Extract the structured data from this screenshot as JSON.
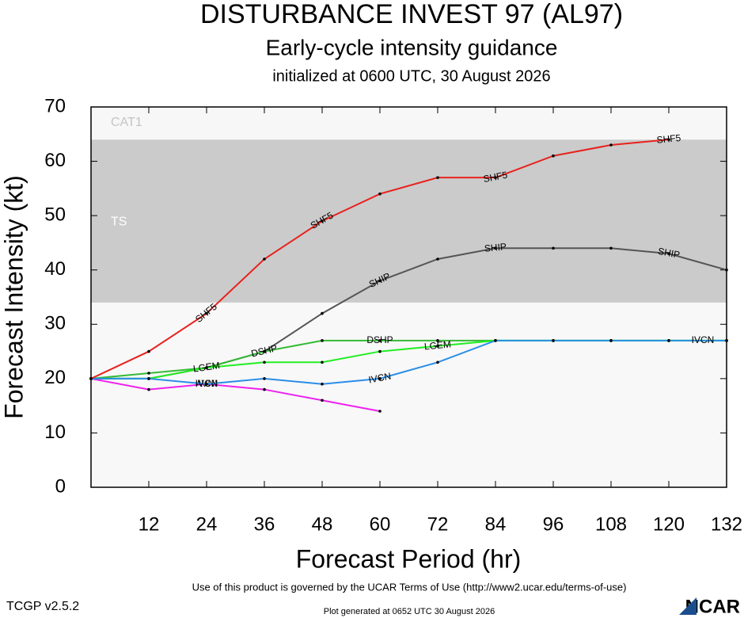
{
  "chart_data": {
    "type": "line",
    "title": "DISTURBANCE INVEST 97 (AL97)",
    "subtitle": "Early-cycle intensity guidance",
    "initialized": "initialized at 0600 UTC, 30 August 2026",
    "x_label": "Forecast Period (hr)",
    "y_label": "Forecast Intensity (kt)",
    "footer": "Use of this product is governed by the UCAR Terms of Use (http://www2.ucar.edu/terms-of-use)",
    "version": "TCGP v2.5.2",
    "generated": "Plot generated at 0652 UTC   30 August 2026",
    "logo": "NCAR",
    "xlim": [
      0,
      132
    ],
    "xticks": [
      12,
      24,
      36,
      48,
      60,
      72,
      84,
      96,
      108,
      120,
      132
    ],
    "ylim": [
      0,
      70
    ],
    "yticks": [
      0,
      10,
      20,
      30,
      40,
      50,
      60,
      70
    ],
    "bands": [
      {
        "label": "TS",
        "from": 34,
        "to": 64,
        "color": "#cbcbcb"
      },
      {
        "label": "CAT1",
        "from": 64,
        "to": 70,
        "color": "#f7f7f7"
      }
    ],
    "x": [
      0,
      12,
      24,
      36,
      48,
      60,
      72,
      84,
      96,
      108,
      120,
      132
    ],
    "series": [
      {
        "name": "SHIP",
        "color": "#555555",
        "values": [
          20,
          20,
          22,
          25,
          32,
          38,
          42,
          44,
          44,
          44,
          43,
          40
        ]
      },
      {
        "name": "DSHP",
        "color": "#33bb33",
        "values": [
          20,
          21,
          22,
          25,
          27,
          27,
          27,
          27,
          27,
          27,
          27,
          27
        ]
      },
      {
        "name": "LGEM",
        "color": "#22ee22",
        "values": [
          20,
          20,
          22,
          23,
          23,
          25,
          26,
          27,
          27,
          27,
          27,
          27
        ]
      },
      {
        "name": "AVNI",
        "color": "#ee22ee",
        "values": [
          20,
          18,
          19,
          18,
          16,
          14,
          null,
          null,
          null,
          null,
          null,
          null
        ]
      },
      {
        "name": "IVCN",
        "color": "#2a8ee8",
        "values": [
          20,
          20,
          19,
          20,
          19,
          20,
          23,
          27,
          27,
          27,
          27,
          27
        ]
      },
      {
        "name": "SHF5",
        "color": "#e8221e",
        "values": [
          20,
          25,
          32,
          42,
          49,
          54,
          57,
          57,
          61,
          63,
          64,
          null
        ]
      }
    ]
  }
}
